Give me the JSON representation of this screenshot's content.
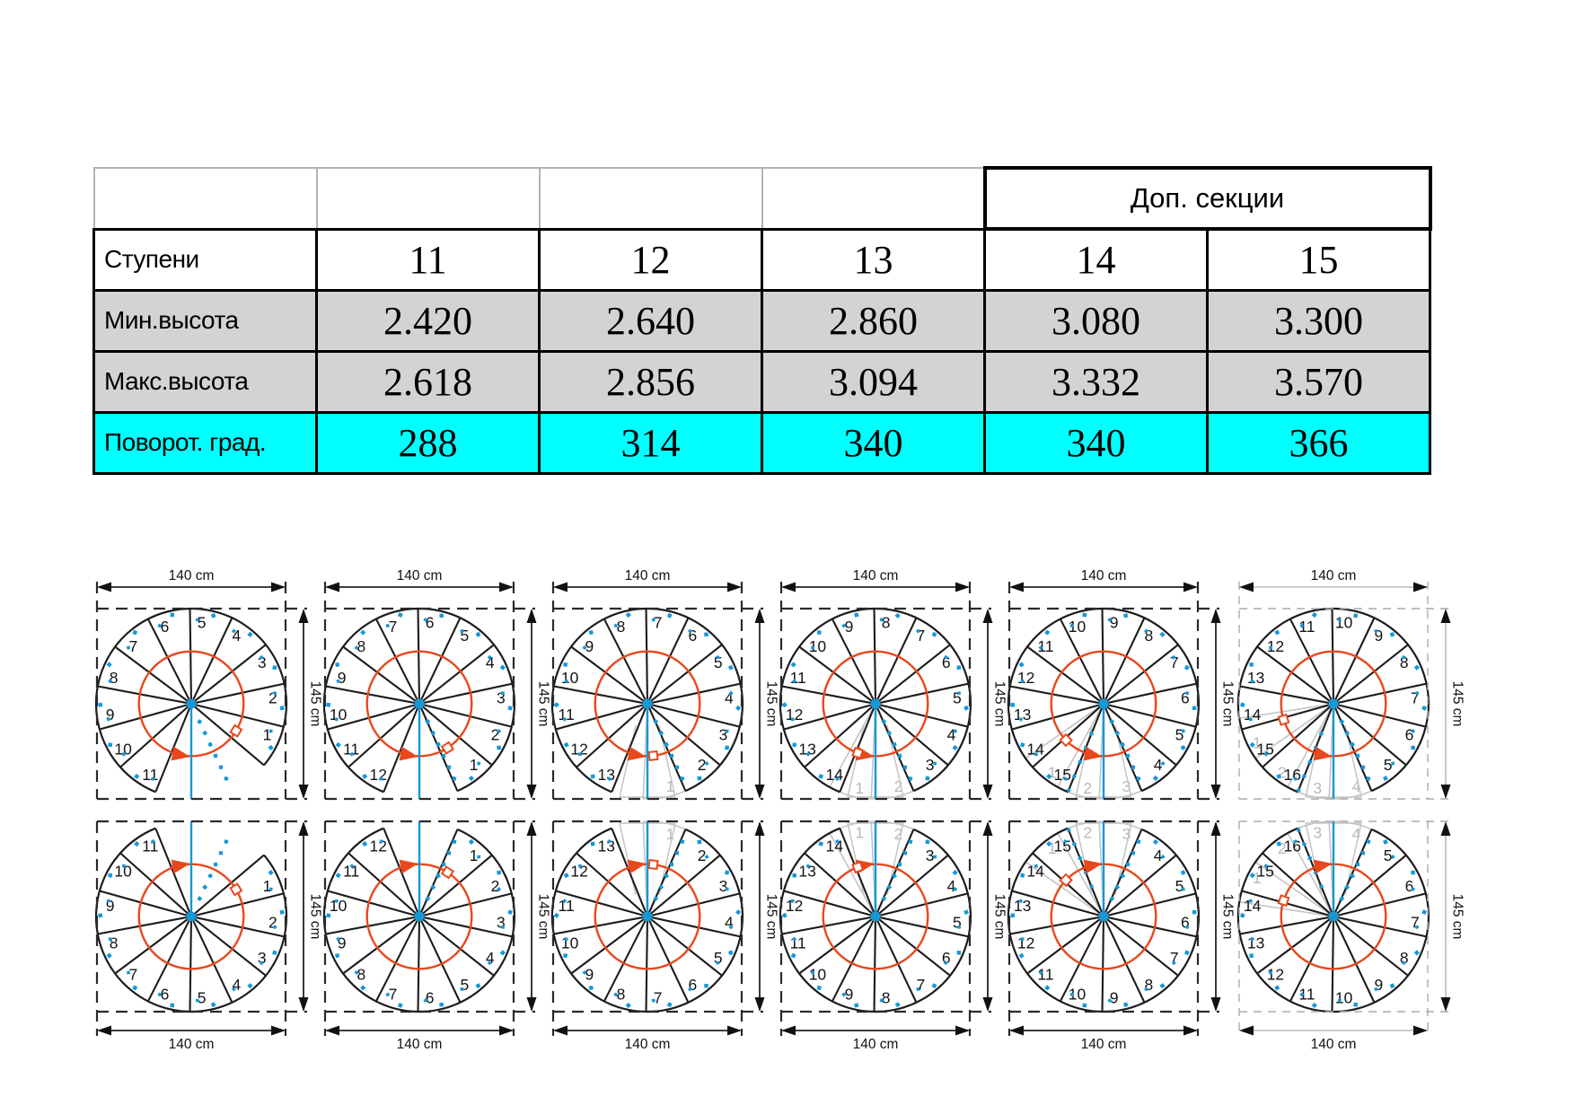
{
  "table": {
    "corner_header": "Доп. секции",
    "row_labels": {
      "steps": "Ступени",
      "min_height": "Мин.высота",
      "max_height": "Макс.высота",
      "turn": "Поворот. град."
    },
    "steps": [
      "11",
      "12",
      "13",
      "14",
      "15"
    ],
    "min_height": [
      "2.420",
      "2.640",
      "2.860",
      "3.080",
      "3.300"
    ],
    "max_height": [
      "2.618",
      "2.856",
      "3.094",
      "3.332",
      "3.570"
    ],
    "turn_degrees": [
      "288",
      "314",
      "340",
      "340",
      "366"
    ]
  },
  "diagrams": {
    "width_label": "140 cm",
    "height_label": "145 cm",
    "top_row_direction": "ccw",
    "bottom_row_direction": "cw",
    "items": [
      {
        "steps": 11,
        "turn_deg": 288,
        "ghost_numbers": [],
        "muted": false
      },
      {
        "steps": 12,
        "turn_deg": 314,
        "ghost_numbers": [],
        "muted": false
      },
      {
        "steps": 13,
        "turn_deg": 340,
        "ghost_numbers": [
          1
        ],
        "muted": false
      },
      {
        "steps": 14,
        "turn_deg": 340,
        "ghost_numbers": [
          1,
          2
        ],
        "muted": false
      },
      {
        "steps": 15,
        "turn_deg": 366,
        "ghost_numbers": [
          1,
          2,
          3
        ],
        "muted": false
      },
      {
        "steps": 16,
        "turn_deg": null,
        "ghost_numbers": [
          1,
          2,
          3,
          4
        ],
        "muted": true
      }
    ]
  },
  "colors": {
    "turn_row_bg": "#00ffff",
    "height_rows_bg": "#d3d3d3",
    "stair_line": "#1c1c1c",
    "rotation_arrow": "#e8481c",
    "center_post": "#1598d5",
    "ghost": "#c4c4c4"
  }
}
